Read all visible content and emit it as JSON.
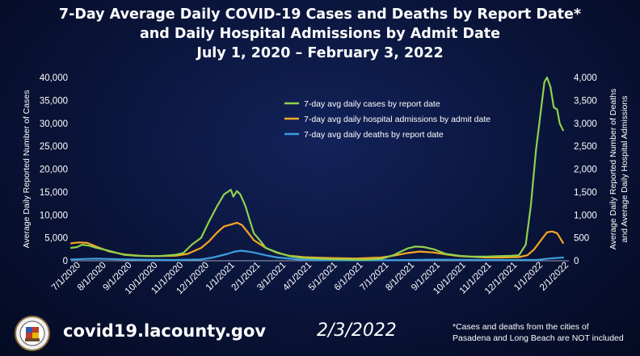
{
  "title": {
    "line1": "7-Day Average Daily COVID-19 Cases and Deaths by Report Date*",
    "line2": "and Daily Hospital Admissions by Admit Date",
    "line3": "July 1, 2020 – February 3, 2022"
  },
  "footer": {
    "url": "covid19.lacounty.gov",
    "date": "2/3/2022",
    "note_line1": "*Cases and deaths from the cities of",
    "note_line2": "Pasadena and Long Beach are NOT included"
  },
  "colors": {
    "cases": "#8fd14f",
    "hospital": "#f5a623",
    "deaths": "#3b9ddd",
    "text": "#ffffff",
    "axis": "#9aa3b8"
  },
  "chart_data": {
    "type": "line",
    "x_labels": [
      "7/1/2020",
      "8/1/2020",
      "9/1/2020",
      "10/1/2020",
      "11/1/2020",
      "12/1/2020",
      "1/1/2021",
      "2/1/2021",
      "3/1/2021",
      "4/1/2021",
      "5/1/2021",
      "6/1/2021",
      "7/1/2021",
      "8/1/2021",
      "9/1/2021",
      "10/1/2021",
      "11/1/2021",
      "12/1/2021",
      "1/1/2022",
      "2/1/2022"
    ],
    "x_start": "2020-07-01",
    "x_end": "2022-02-03",
    "ylabel_left": "Average Daily Reported Number of Cases",
    "ylabel_right_line1": "Average Daily Reported Number of Deaths",
    "ylabel_right_line2": "and Average Daily Hospital Admissions",
    "ylim_left": [
      0,
      40000
    ],
    "yticks_left": [
      "0",
      "5,000",
      "10,000",
      "15,000",
      "20,000",
      "25,000",
      "30,000",
      "35,000",
      "40,000"
    ],
    "ylim_right": [
      0,
      4000
    ],
    "yticks_right": [
      "0",
      "500",
      "1,000",
      "1,500",
      "2,000",
      "2,500",
      "3,000",
      "3,500",
      "4,000"
    ],
    "legend_position": "top-center",
    "series": [
      {
        "name": "7-day avg daily cases by report date",
        "axis": "left",
        "points": [
          [
            "2020-07-01",
            2800
          ],
          [
            "2020-07-08",
            3000
          ],
          [
            "2020-07-14",
            3500
          ],
          [
            "2020-07-22",
            3300
          ],
          [
            "2020-07-31",
            2800
          ],
          [
            "2020-08-10",
            2400
          ],
          [
            "2020-08-20",
            1900
          ],
          [
            "2020-09-01",
            1300
          ],
          [
            "2020-09-15",
            1100
          ],
          [
            "2020-10-01",
            1000
          ],
          [
            "2020-10-15",
            1050
          ],
          [
            "2020-11-01",
            1300
          ],
          [
            "2020-11-10",
            1700
          ],
          [
            "2020-11-20",
            3500
          ],
          [
            "2020-12-01",
            5000
          ],
          [
            "2020-12-10",
            8500
          ],
          [
            "2020-12-20",
            12000
          ],
          [
            "2020-12-28",
            14500
          ],
          [
            "2021-01-01",
            15000
          ],
          [
            "2021-01-05",
            15500
          ],
          [
            "2021-01-08",
            14000
          ],
          [
            "2021-01-12",
            15200
          ],
          [
            "2021-01-16",
            14500
          ],
          [
            "2021-01-22",
            12000
          ],
          [
            "2021-01-27",
            9000
          ],
          [
            "2021-02-01",
            6000
          ],
          [
            "2021-02-08",
            4500
          ],
          [
            "2021-02-15",
            2800
          ],
          [
            "2021-03-01",
            1800
          ],
          [
            "2021-03-15",
            1000
          ],
          [
            "2021-04-01",
            600
          ],
          [
            "2021-05-01",
            350
          ],
          [
            "2021-06-01",
            250
          ],
          [
            "2021-06-15",
            250
          ],
          [
            "2021-07-01",
            400
          ],
          [
            "2021-07-15",
            1200
          ],
          [
            "2021-08-01",
            2700
          ],
          [
            "2021-08-10",
            3100
          ],
          [
            "2021-08-20",
            3000
          ],
          [
            "2021-09-01",
            2500
          ],
          [
            "2021-09-15",
            1500
          ],
          [
            "2021-10-01",
            1100
          ],
          [
            "2021-10-15",
            900
          ],
          [
            "2021-11-01",
            900
          ],
          [
            "2021-11-15",
            1000
          ],
          [
            "2021-12-01",
            1100
          ],
          [
            "2021-12-10",
            1200
          ],
          [
            "2021-12-18",
            3500
          ],
          [
            "2021-12-24",
            12000
          ],
          [
            "2021-12-30",
            24000
          ],
          [
            "2022-01-05",
            33000
          ],
          [
            "2022-01-09",
            39000
          ],
          [
            "2022-01-12",
            40000
          ],
          [
            "2022-01-16",
            38000
          ],
          [
            "2022-01-20",
            33500
          ],
          [
            "2022-01-24",
            33000
          ],
          [
            "2022-01-27",
            30000
          ],
          [
            "2022-01-31",
            28500
          ]
        ]
      },
      {
        "name": "7-day avg daily hospital admissions by admit date",
        "axis": "right",
        "points": [
          [
            "2020-07-01",
            380
          ],
          [
            "2020-07-10",
            400
          ],
          [
            "2020-07-20",
            390
          ],
          [
            "2020-08-01",
            300
          ],
          [
            "2020-08-15",
            200
          ],
          [
            "2020-09-01",
            140
          ],
          [
            "2020-09-20",
            110
          ],
          [
            "2020-10-10",
            100
          ],
          [
            "2020-11-01",
            110
          ],
          [
            "2020-11-15",
            150
          ],
          [
            "2020-12-01",
            280
          ],
          [
            "2020-12-10",
            420
          ],
          [
            "2020-12-20",
            620
          ],
          [
            "2020-12-28",
            750
          ],
          [
            "2021-01-05",
            790
          ],
          [
            "2021-01-12",
            830
          ],
          [
            "2021-01-18",
            780
          ],
          [
            "2021-01-25",
            620
          ],
          [
            "2021-02-01",
            450
          ],
          [
            "2021-02-15",
            280
          ],
          [
            "2021-03-01",
            170
          ],
          [
            "2021-03-15",
            110
          ],
          [
            "2021-04-01",
            80
          ],
          [
            "2021-05-01",
            60
          ],
          [
            "2021-06-01",
            50
          ],
          [
            "2021-07-01",
            70
          ],
          [
            "2021-07-15",
            110
          ],
          [
            "2021-08-01",
            170
          ],
          [
            "2021-08-15",
            200
          ],
          [
            "2021-09-01",
            180
          ],
          [
            "2021-09-15",
            140
          ],
          [
            "2021-10-01",
            100
          ],
          [
            "2021-11-01",
            70
          ],
          [
            "2021-11-20",
            70
          ],
          [
            "2021-12-10",
            80
          ],
          [
            "2021-12-20",
            120
          ],
          [
            "2021-12-28",
            250
          ],
          [
            "2022-01-05",
            450
          ],
          [
            "2022-01-12",
            620
          ],
          [
            "2022-01-18",
            640
          ],
          [
            "2022-01-24",
            600
          ],
          [
            "2022-01-31",
            390
          ]
        ]
      },
      {
        "name": "7-day avg daily deaths by report date",
        "axis": "right",
        "points": [
          [
            "2020-07-01",
            30
          ],
          [
            "2020-07-20",
            40
          ],
          [
            "2020-08-01",
            45
          ],
          [
            "2020-09-01",
            30
          ],
          [
            "2020-10-01",
            20
          ],
          [
            "2020-11-01",
            15
          ],
          [
            "2020-12-01",
            30
          ],
          [
            "2020-12-15",
            70
          ],
          [
            "2021-01-01",
            150
          ],
          [
            "2021-01-10",
            200
          ],
          [
            "2021-01-17",
            220
          ],
          [
            "2021-01-25",
            200
          ],
          [
            "2021-02-01",
            180
          ],
          [
            "2021-02-15",
            120
          ],
          [
            "2021-03-01",
            70
          ],
          [
            "2021-04-01",
            20
          ],
          [
            "2021-06-01",
            8
          ],
          [
            "2021-08-01",
            15
          ],
          [
            "2021-09-01",
            25
          ],
          [
            "2021-10-01",
            20
          ],
          [
            "2021-11-01",
            15
          ],
          [
            "2021-12-01",
            15
          ],
          [
            "2022-01-01",
            20
          ],
          [
            "2022-01-15",
            50
          ],
          [
            "2022-01-31",
            70
          ]
        ]
      }
    ]
  }
}
